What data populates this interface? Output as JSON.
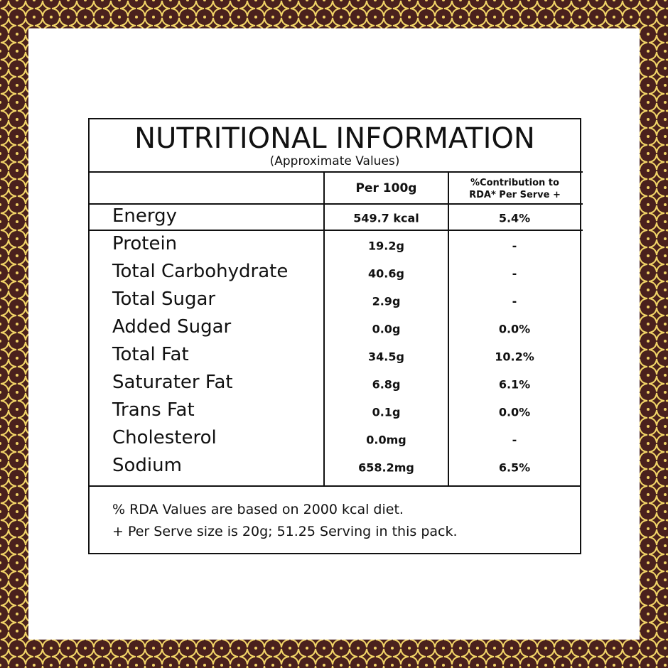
{
  "title": "NUTRITIONAL INFORMATION",
  "subtitle": "(Approximate Values)",
  "header": {
    "per100": "Per 100g",
    "rda": "%Contribution to RDA* Per Serve +"
  },
  "rows": [
    [
      "Energy",
      "549.7 kcal",
      "5.4%"
    ],
    [
      "Protein",
      "19.2g",
      "-"
    ],
    [
      "Total Carbohydrate",
      "40.6g",
      "-"
    ],
    [
      "Total Sugar",
      "2.9g",
      "-"
    ],
    [
      "Added Sugar",
      "0.0g",
      "0.0%"
    ],
    [
      "Total Fat",
      "34.5g",
      "10.2%"
    ],
    [
      "Saturater Fat",
      "6.8g",
      "6.1%"
    ],
    [
      "Trans Fat",
      "0.1g",
      "0.0%"
    ],
    [
      "Cholesterol",
      "0.0mg",
      "-"
    ],
    [
      "Sodium",
      "658.2mg",
      "6.5%"
    ]
  ],
  "footnotes": [
    "% RDA Values are based on 2000 kcal diet.",
    "+ Per Serve size is 20g; 51.25 Serving in this pack."
  ]
}
